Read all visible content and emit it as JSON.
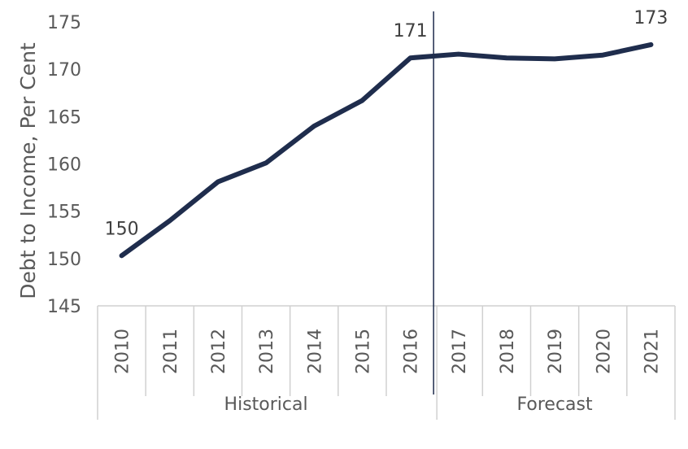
{
  "chart_data": {
    "type": "line",
    "ylabel": "Debt to Income, Per Cent",
    "xlabel": "",
    "title": "",
    "ylim": [
      145,
      175
    ],
    "yticks": [
      "145",
      "150",
      "155",
      "160",
      "165",
      "170",
      "175"
    ],
    "categories": [
      "2010",
      "2011",
      "2012",
      "2013",
      "2014",
      "2015",
      "2016",
      "2017",
      "2018",
      "2019",
      "2020",
      "2021"
    ],
    "series": [
      {
        "values": [
          150.3,
          154.0,
          158.1,
          160.1,
          164.0,
          166.7,
          171.2,
          171.6,
          171.2,
          171.1,
          171.5,
          172.6
        ]
      }
    ],
    "data_labels": [
      {
        "index": 0,
        "text": "150"
      },
      {
        "index": 6,
        "text": "171"
      },
      {
        "index": 11,
        "text": "173"
      }
    ],
    "groups": [
      {
        "label": "Historical",
        "from": 0,
        "to": 6
      },
      {
        "label": "Forecast",
        "from": 7,
        "to": 11
      }
    ],
    "divider_after_index": 6,
    "grid": false,
    "line_color": "#1f2d4d",
    "axis_color": "#d0d0d0"
  }
}
